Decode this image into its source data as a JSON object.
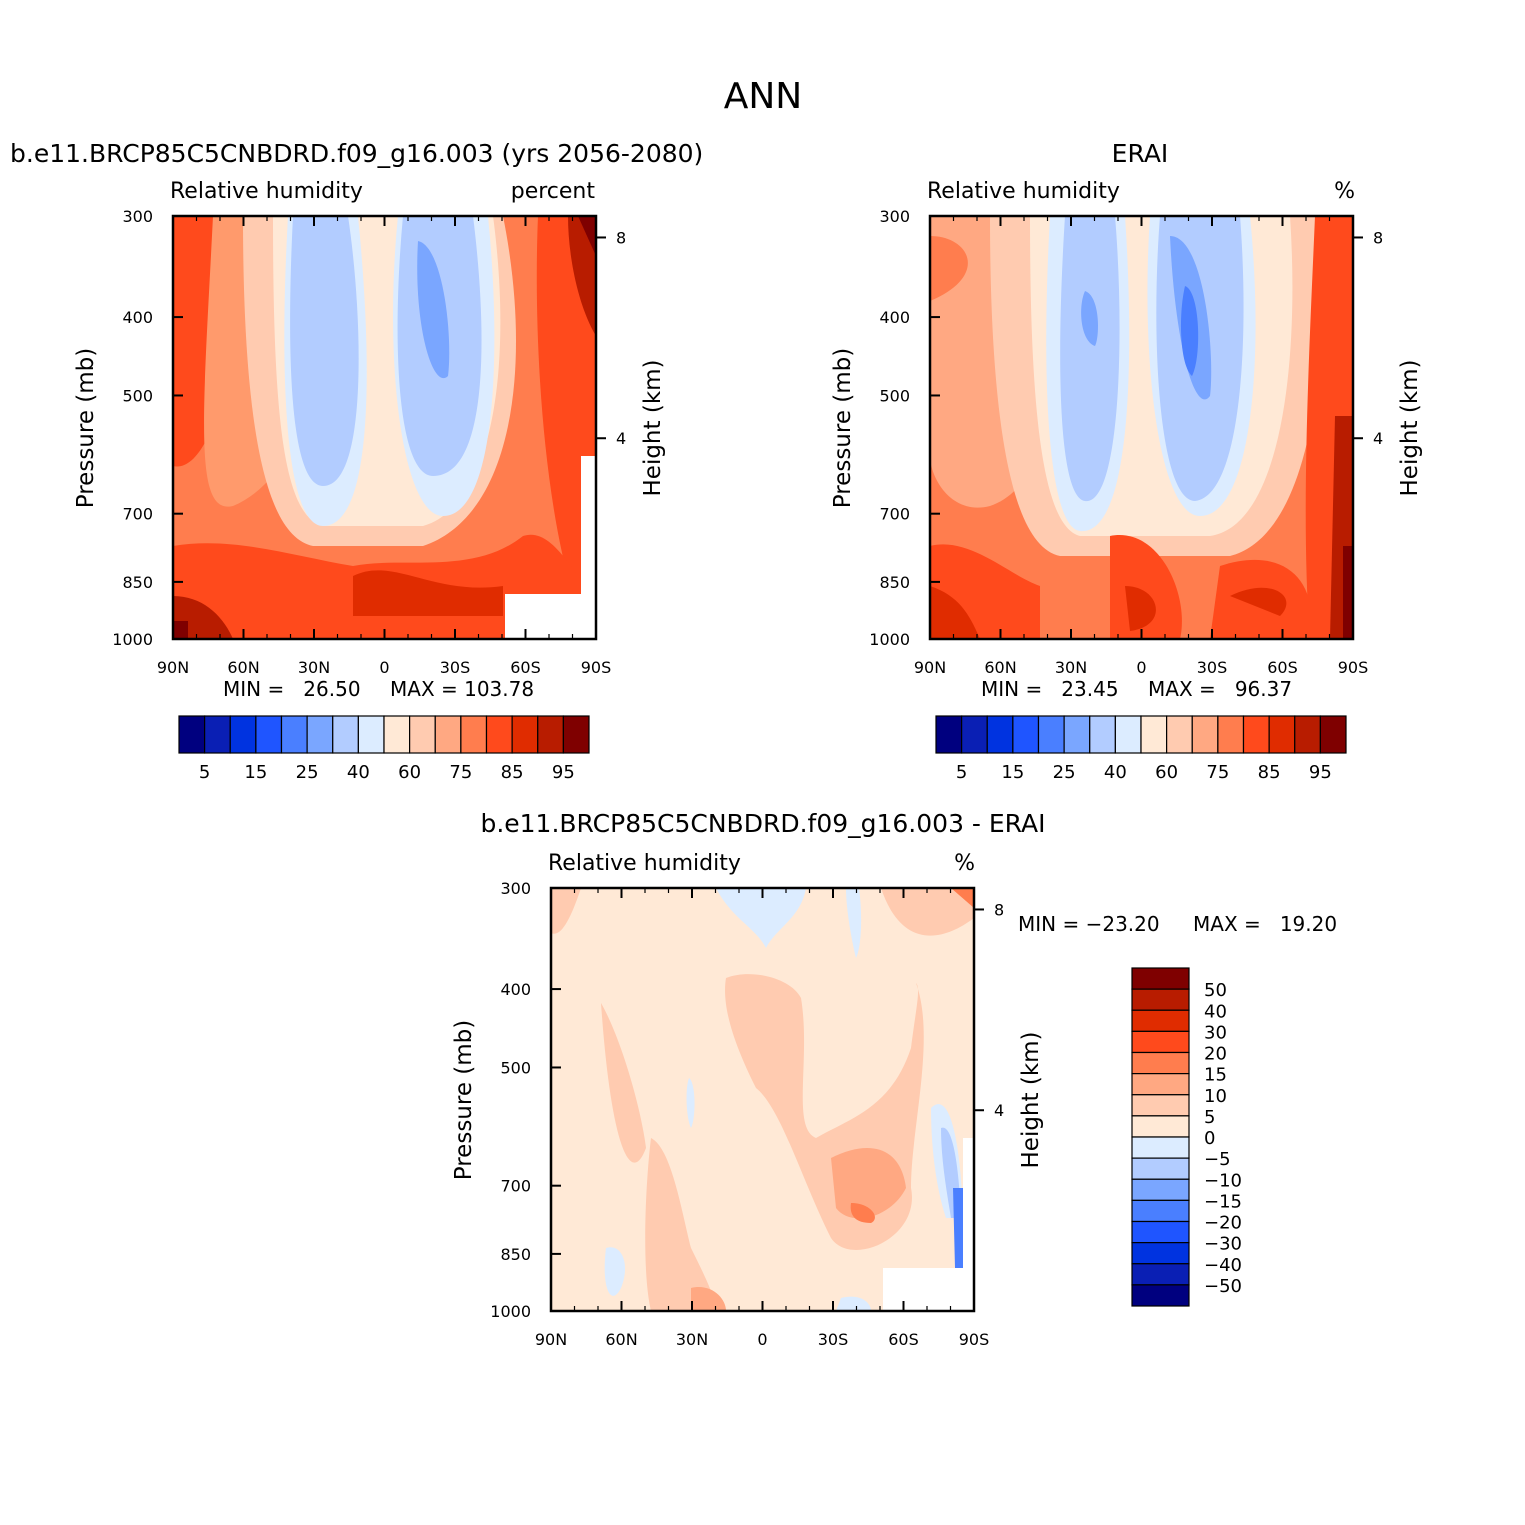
{
  "figure": {
    "main_title": "ANN"
  },
  "chart_data": [
    {
      "type": "heatmap",
      "title": "b.e11.BRCP85C5CNBDRD.f09_g16.003 (yrs 2056-2080)",
      "left_label": "Relative humidity",
      "right_label": "percent",
      "xlabel": "",
      "ylabel": "Pressure (mb)",
      "y2label": "Height (km)",
      "x_ticks": [
        "90N",
        "60N",
        "30N",
        "0",
        "30S",
        "60S",
        "90S"
      ],
      "y_ticks": [
        300,
        400,
        500,
        700,
        850,
        1000
      ],
      "y_range": [
        1000,
        300
      ],
      "y_scale": "log",
      "y2_ticks": [
        8,
        4
      ],
      "min_text": "MIN =   26.50",
      "max_text": "MAX = 103.78",
      "min": 26.5,
      "max": 103.78,
      "colorbar": {
        "orientation": "horizontal",
        "tick_labels": [
          "5",
          "15",
          "25",
          "40",
          "60",
          "75",
          "85",
          "95"
        ],
        "colors": [
          "#00007f",
          "#0a1fb4",
          "#0033e0",
          "#1f55ff",
          "#4a7fff",
          "#7aa6ff",
          "#b2ccff",
          "#dcecff",
          "#ffe9d6",
          "#ffcbb0",
          "#ffa882",
          "#ff7d4e",
          "#ff4a1c",
          "#e02c00",
          "#b81c00",
          "#7f0000"
        ]
      },
      "grid": false
    },
    {
      "type": "heatmap",
      "title": "ERAI",
      "left_label": "Relative humidity",
      "right_label": "%",
      "xlabel": "",
      "ylabel": "Pressure (mb)",
      "y2label": "Height (km)",
      "x_ticks": [
        "90N",
        "60N",
        "30N",
        "0",
        "30S",
        "60S",
        "90S"
      ],
      "y_ticks": [
        300,
        400,
        500,
        700,
        850,
        1000
      ],
      "y_range": [
        1000,
        300
      ],
      "y_scale": "log",
      "y2_ticks": [
        8,
        4
      ],
      "min_text": "MIN =   23.45",
      "max_text": "MAX =   96.37",
      "min": 23.45,
      "max": 96.37,
      "colorbar": {
        "orientation": "horizontal",
        "tick_labels": [
          "5",
          "15",
          "25",
          "40",
          "60",
          "75",
          "85",
          "95"
        ],
        "colors": [
          "#00007f",
          "#0a1fb4",
          "#0033e0",
          "#1f55ff",
          "#4a7fff",
          "#7aa6ff",
          "#b2ccff",
          "#dcecff",
          "#ffe9d6",
          "#ffcbb0",
          "#ffa882",
          "#ff7d4e",
          "#ff4a1c",
          "#e02c00",
          "#b81c00",
          "#7f0000"
        ]
      },
      "grid": false
    },
    {
      "type": "heatmap",
      "title": "b.e11.BRCP85C5CNBDRD.f09_g16.003 - ERAI",
      "left_label": "Relative humidity",
      "right_label": "%",
      "xlabel": "",
      "ylabel": "Pressure (mb)",
      "y2label": "Height (km)",
      "x_ticks": [
        "90N",
        "60N",
        "30N",
        "0",
        "30S",
        "60S",
        "90S"
      ],
      "y_ticks": [
        300,
        400,
        500,
        700,
        850,
        1000
      ],
      "y_range": [
        1000,
        300
      ],
      "y_scale": "log",
      "y2_ticks": [
        8,
        4
      ],
      "min_text": "MIN = -23.20",
      "max_text": "MAX =   19.20",
      "min": -23.2,
      "max": 19.2,
      "colorbar": {
        "orientation": "vertical",
        "tick_labels": [
          "50",
          "40",
          "30",
          "20",
          "15",
          "10",
          "5",
          "0",
          "-5",
          "-10",
          "-15",
          "-20",
          "-30",
          "-40",
          "-50"
        ],
        "colors": [
          "#7f0000",
          "#b81c00",
          "#e02c00",
          "#ff4a1c",
          "#ff7d4e",
          "#ffa882",
          "#ffcbb0",
          "#ffe9d6",
          "#dcecff",
          "#b2ccff",
          "#7aa6ff",
          "#4a7fff",
          "#1f55ff",
          "#0033e0",
          "#0a1fb4",
          "#00007f"
        ]
      },
      "grid": false
    }
  ]
}
